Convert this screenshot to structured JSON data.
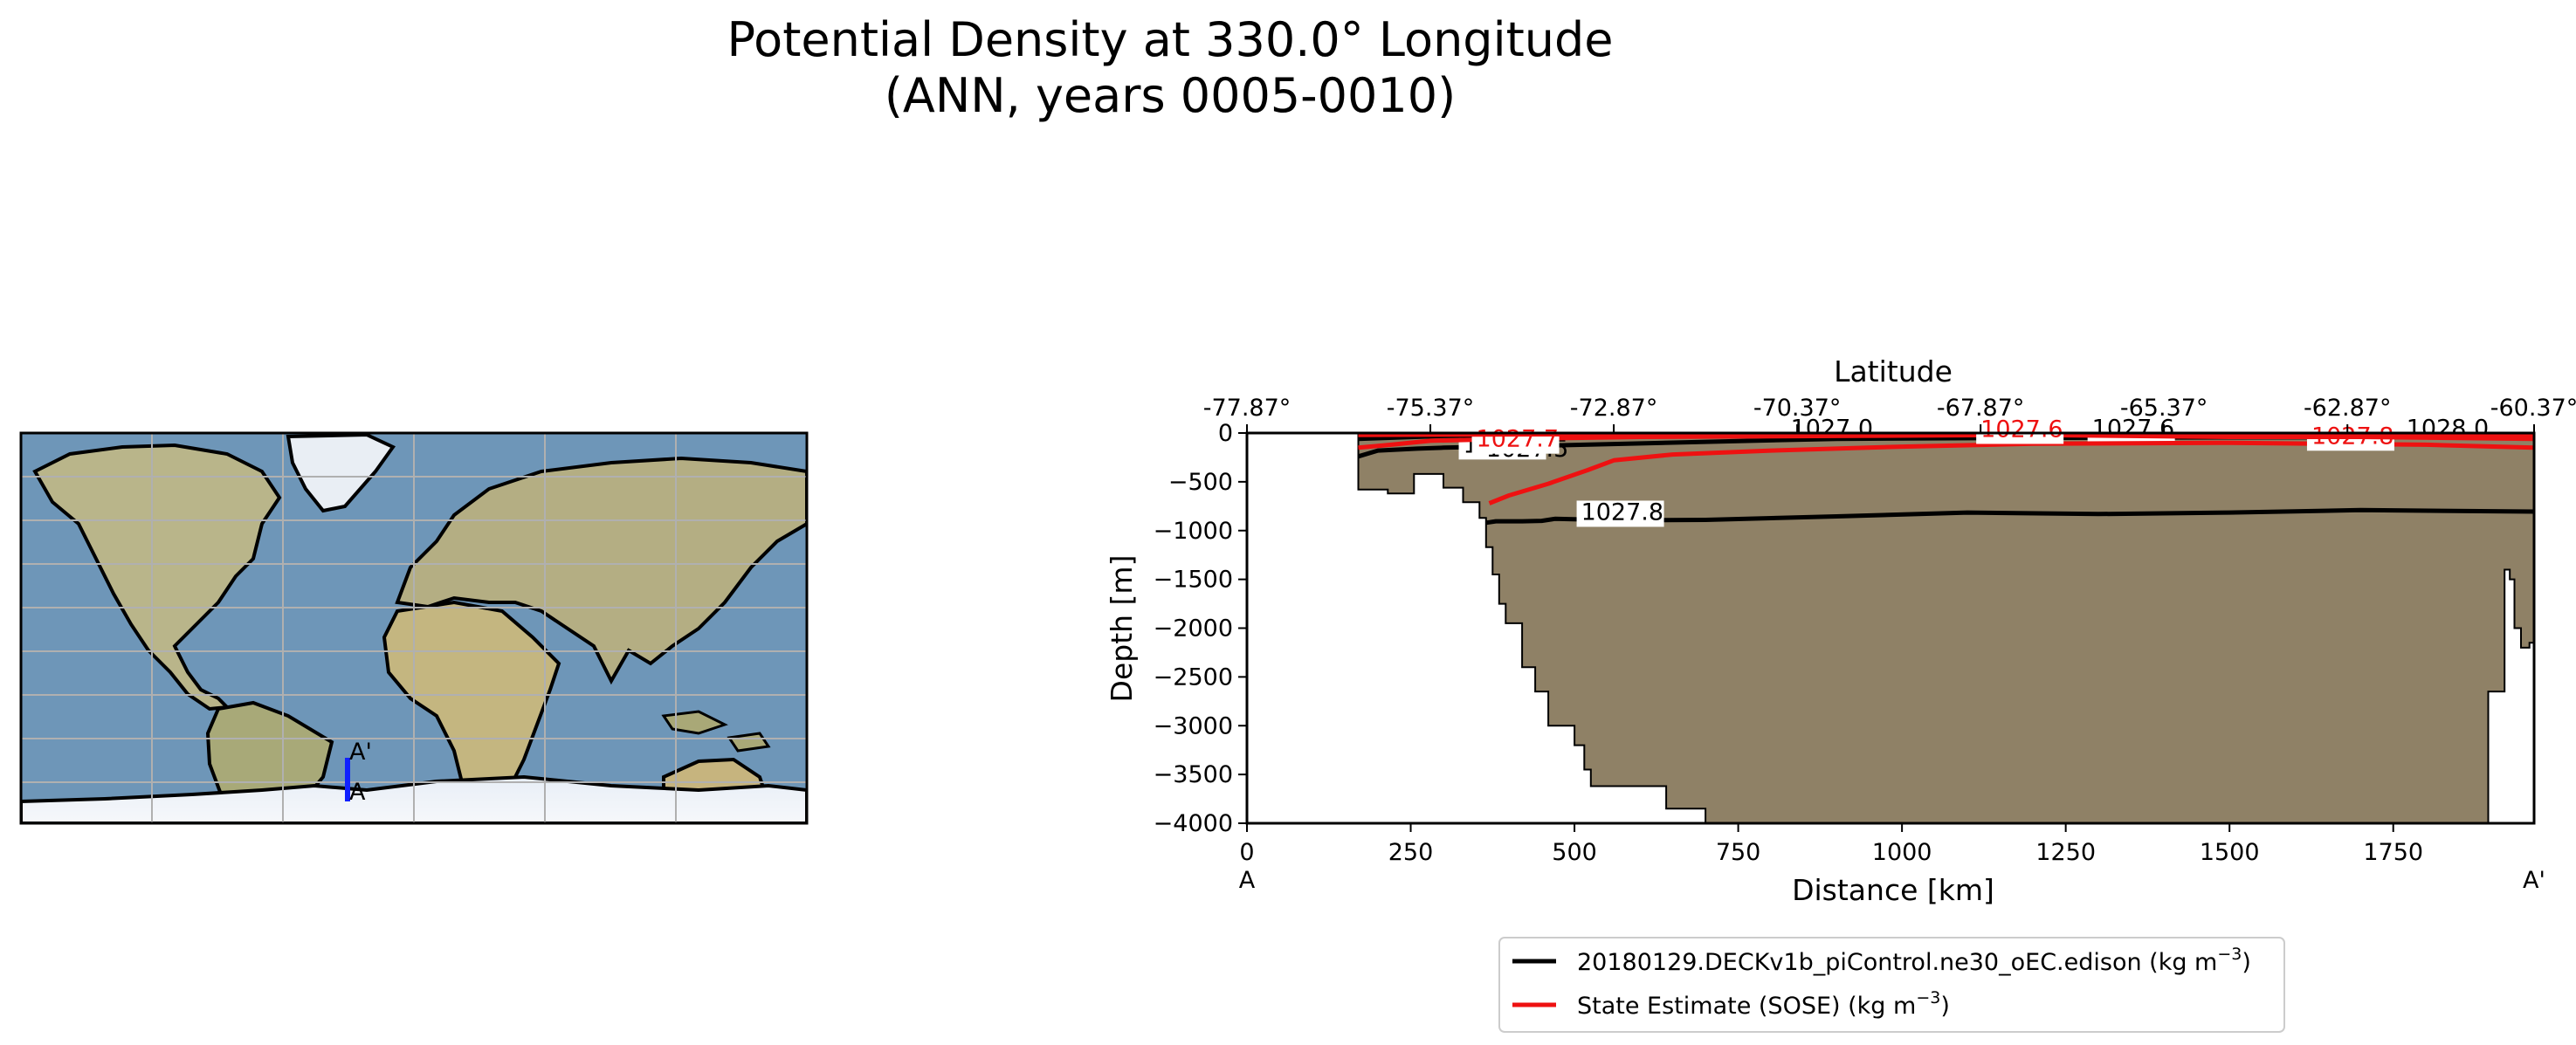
{
  "chart_data": {
    "type": "line",
    "title": [
      "Potential Density at 330.0° Longitude",
      "(ANN, years 0005-0010)"
    ],
    "xlabel": "Distance [km]",
    "ylabel": "Depth [m]",
    "top_xlabel": "Latitude",
    "xlim": [
      0,
      1965
    ],
    "ylim": [
      -4000,
      0
    ],
    "xticks": [
      0,
      250,
      500,
      750,
      1000,
      1250,
      1500,
      1750
    ],
    "yticks": [
      0,
      -500,
      -1000,
      -1500,
      -2000,
      -2500,
      -3000,
      -3500,
      -4000
    ],
    "yticklabels": [
      "0",
      "−500",
      "−1000",
      "−1500",
      "−2000",
      "−2500",
      "−3000",
      "−3500",
      "−4000"
    ],
    "lat_ticks": [
      {
        "x": 0,
        "label": "-77.87°"
      },
      {
        "x": 280,
        "label": "-75.37°"
      },
      {
        "x": 560,
        "label": "-72.87°"
      },
      {
        "x": 840,
        "label": "-70.37°"
      },
      {
        "x": 1120,
        "label": "-67.87°"
      },
      {
        "x": 1400,
        "label": "-65.37°"
      },
      {
        "x": 1680,
        "label": "-62.87°"
      },
      {
        "x": 1965,
        "label": "-60.37°"
      }
    ],
    "section_ends": {
      "start": "A",
      "end": "A'"
    },
    "bathymetry": [
      [
        0,
        0
      ],
      [
        170,
        0
      ],
      [
        170,
        -580
      ],
      [
        215,
        -580
      ],
      [
        215,
        -620
      ],
      [
        255,
        -620
      ],
      [
        255,
        -420
      ],
      [
        300,
        -420
      ],
      [
        300,
        -560
      ],
      [
        330,
        -560
      ],
      [
        330,
        -710
      ],
      [
        355,
        -710
      ],
      [
        355,
        -870
      ],
      [
        365,
        -870
      ],
      [
        365,
        -1170
      ],
      [
        375,
        -1170
      ],
      [
        375,
        -1450
      ],
      [
        385,
        -1450
      ],
      [
        385,
        -1750
      ],
      [
        395,
        -1750
      ],
      [
        395,
        -1950
      ],
      [
        420,
        -1950
      ],
      [
        420,
        -2400
      ],
      [
        440,
        -2400
      ],
      [
        440,
        -2650
      ],
      [
        460,
        -2650
      ],
      [
        460,
        -3000
      ],
      [
        500,
        -3000
      ],
      [
        500,
        -3200
      ],
      [
        515,
        -3200
      ],
      [
        515,
        -3450
      ],
      [
        525,
        -3450
      ],
      [
        525,
        -3620
      ],
      [
        640,
        -3620
      ],
      [
        640,
        -3850
      ],
      [
        700,
        -3850
      ],
      [
        700,
        -4000
      ],
      [
        1895,
        -4000
      ],
      [
        1895,
        -2650
      ],
      [
        1920,
        -2650
      ],
      [
        1920,
        -1400
      ],
      [
        1928,
        -1400
      ],
      [
        1928,
        -1500
      ],
      [
        1935,
        -1500
      ],
      [
        1935,
        -2000
      ],
      [
        1945,
        -2000
      ],
      [
        1945,
        -2200
      ],
      [
        1958,
        -2200
      ],
      [
        1958,
        -2150
      ],
      [
        1965,
        -2150
      ],
      [
        1965,
        0
      ]
    ],
    "series": [
      {
        "name": "20180129.DECKv1b_piControl.ne30_oEC.edison (kg m",
        "unit_sup": "−3",
        "color": "#000000",
        "contours": [
          {
            "level": 1027.8,
            "label": "1027.8",
            "label_x": 510,
            "label_y": -890,
            "points": [
              [
                365,
                -920
              ],
              [
                380,
                -905
              ],
              [
                420,
                -905
              ],
              [
                450,
                -900
              ],
              [
                470,
                -880
              ],
              [
                570,
                -895
              ],
              [
                700,
                -890
              ],
              [
                900,
                -855
              ],
              [
                1100,
                -815
              ],
              [
                1300,
                -830
              ],
              [
                1500,
                -815
              ],
              [
                1700,
                -790
              ],
              [
                1965,
                -805
              ]
            ]
          },
          {
            "level": 1027.7,
            "label": "1027.7",
            "label_x": 330,
            "label_y": -200,
            "points": [
              [
                170,
                -240
              ],
              [
                200,
                -180
              ],
              [
                260,
                -160
              ],
              [
                300,
                -150
              ],
              [
                450,
                -130
              ],
              [
                700,
                -90
              ],
              [
                900,
                -60
              ],
              [
                1200,
                -50
              ],
              [
                1500,
                -45
              ],
              [
                1965,
                -40
              ]
            ]
          },
          {
            "level": 1027.6,
            "label": "1027.6",
            "label_x": 1290,
            "label_y": -30,
            "points": [
              [
                170,
                -60
              ],
              [
                300,
                -30
              ],
              [
                600,
                -20
              ],
              [
                900,
                -15
              ],
              [
                1200,
                -10
              ],
              [
                1965,
                -10
              ]
            ]
          }
        ],
        "extra_labels": [
          {
            "text": "1027.5",
            "x": 365,
            "y": -240
          },
          {
            "text": "1027.0",
            "x": 830,
            "y": -30
          },
          {
            "text": "1028.0",
            "x": 1770,
            "y": -30
          }
        ]
      },
      {
        "name": "State Estimate (SOSE) (kg m",
        "unit_sup": "−3",
        "color": "#ee1111",
        "contours": [
          {
            "level": 1027.8,
            "label": "1027.8",
            "label_x": 1625,
            "label_y": -110,
            "points": [
              [
                370,
                -720
              ],
              [
                400,
                -640
              ],
              [
                460,
                -520
              ],
              [
                520,
                -380
              ],
              [
                560,
                -280
              ],
              [
                650,
                -220
              ],
              [
                800,
                -180
              ],
              [
                1000,
                -140
              ],
              [
                1200,
                -110
              ],
              [
                1500,
                -100
              ],
              [
                1800,
                -120
              ],
              [
                1965,
                -150
              ]
            ]
          },
          {
            "level": 1027.7,
            "label": "1027.7",
            "label_x": 350,
            "label_y": -140,
            "points": [
              [
                170,
                -150
              ],
              [
                220,
                -120
              ],
              [
                280,
                -80
              ],
              [
                400,
                -60
              ],
              [
                600,
                -40
              ],
              [
                900,
                -30
              ],
              [
                1200,
                -20
              ],
              [
                1500,
                -40
              ],
              [
                1700,
                -40
              ],
              [
                1965,
                -60
              ]
            ]
          },
          {
            "level": 1027.6,
            "label": "1027.6",
            "label_x": 1120,
            "label_y": -40,
            "points": [
              [
                170,
                -20
              ],
              [
                600,
                -10
              ],
              [
                1965,
                -20
              ]
            ]
          }
        ]
      }
    ],
    "legend_position": "below",
    "map": {
      "section_label_start": "A",
      "section_label_end": "A'",
      "section_lon": 330.0,
      "section_lat_range": [
        -77.87,
        -60.37
      ]
    }
  }
}
